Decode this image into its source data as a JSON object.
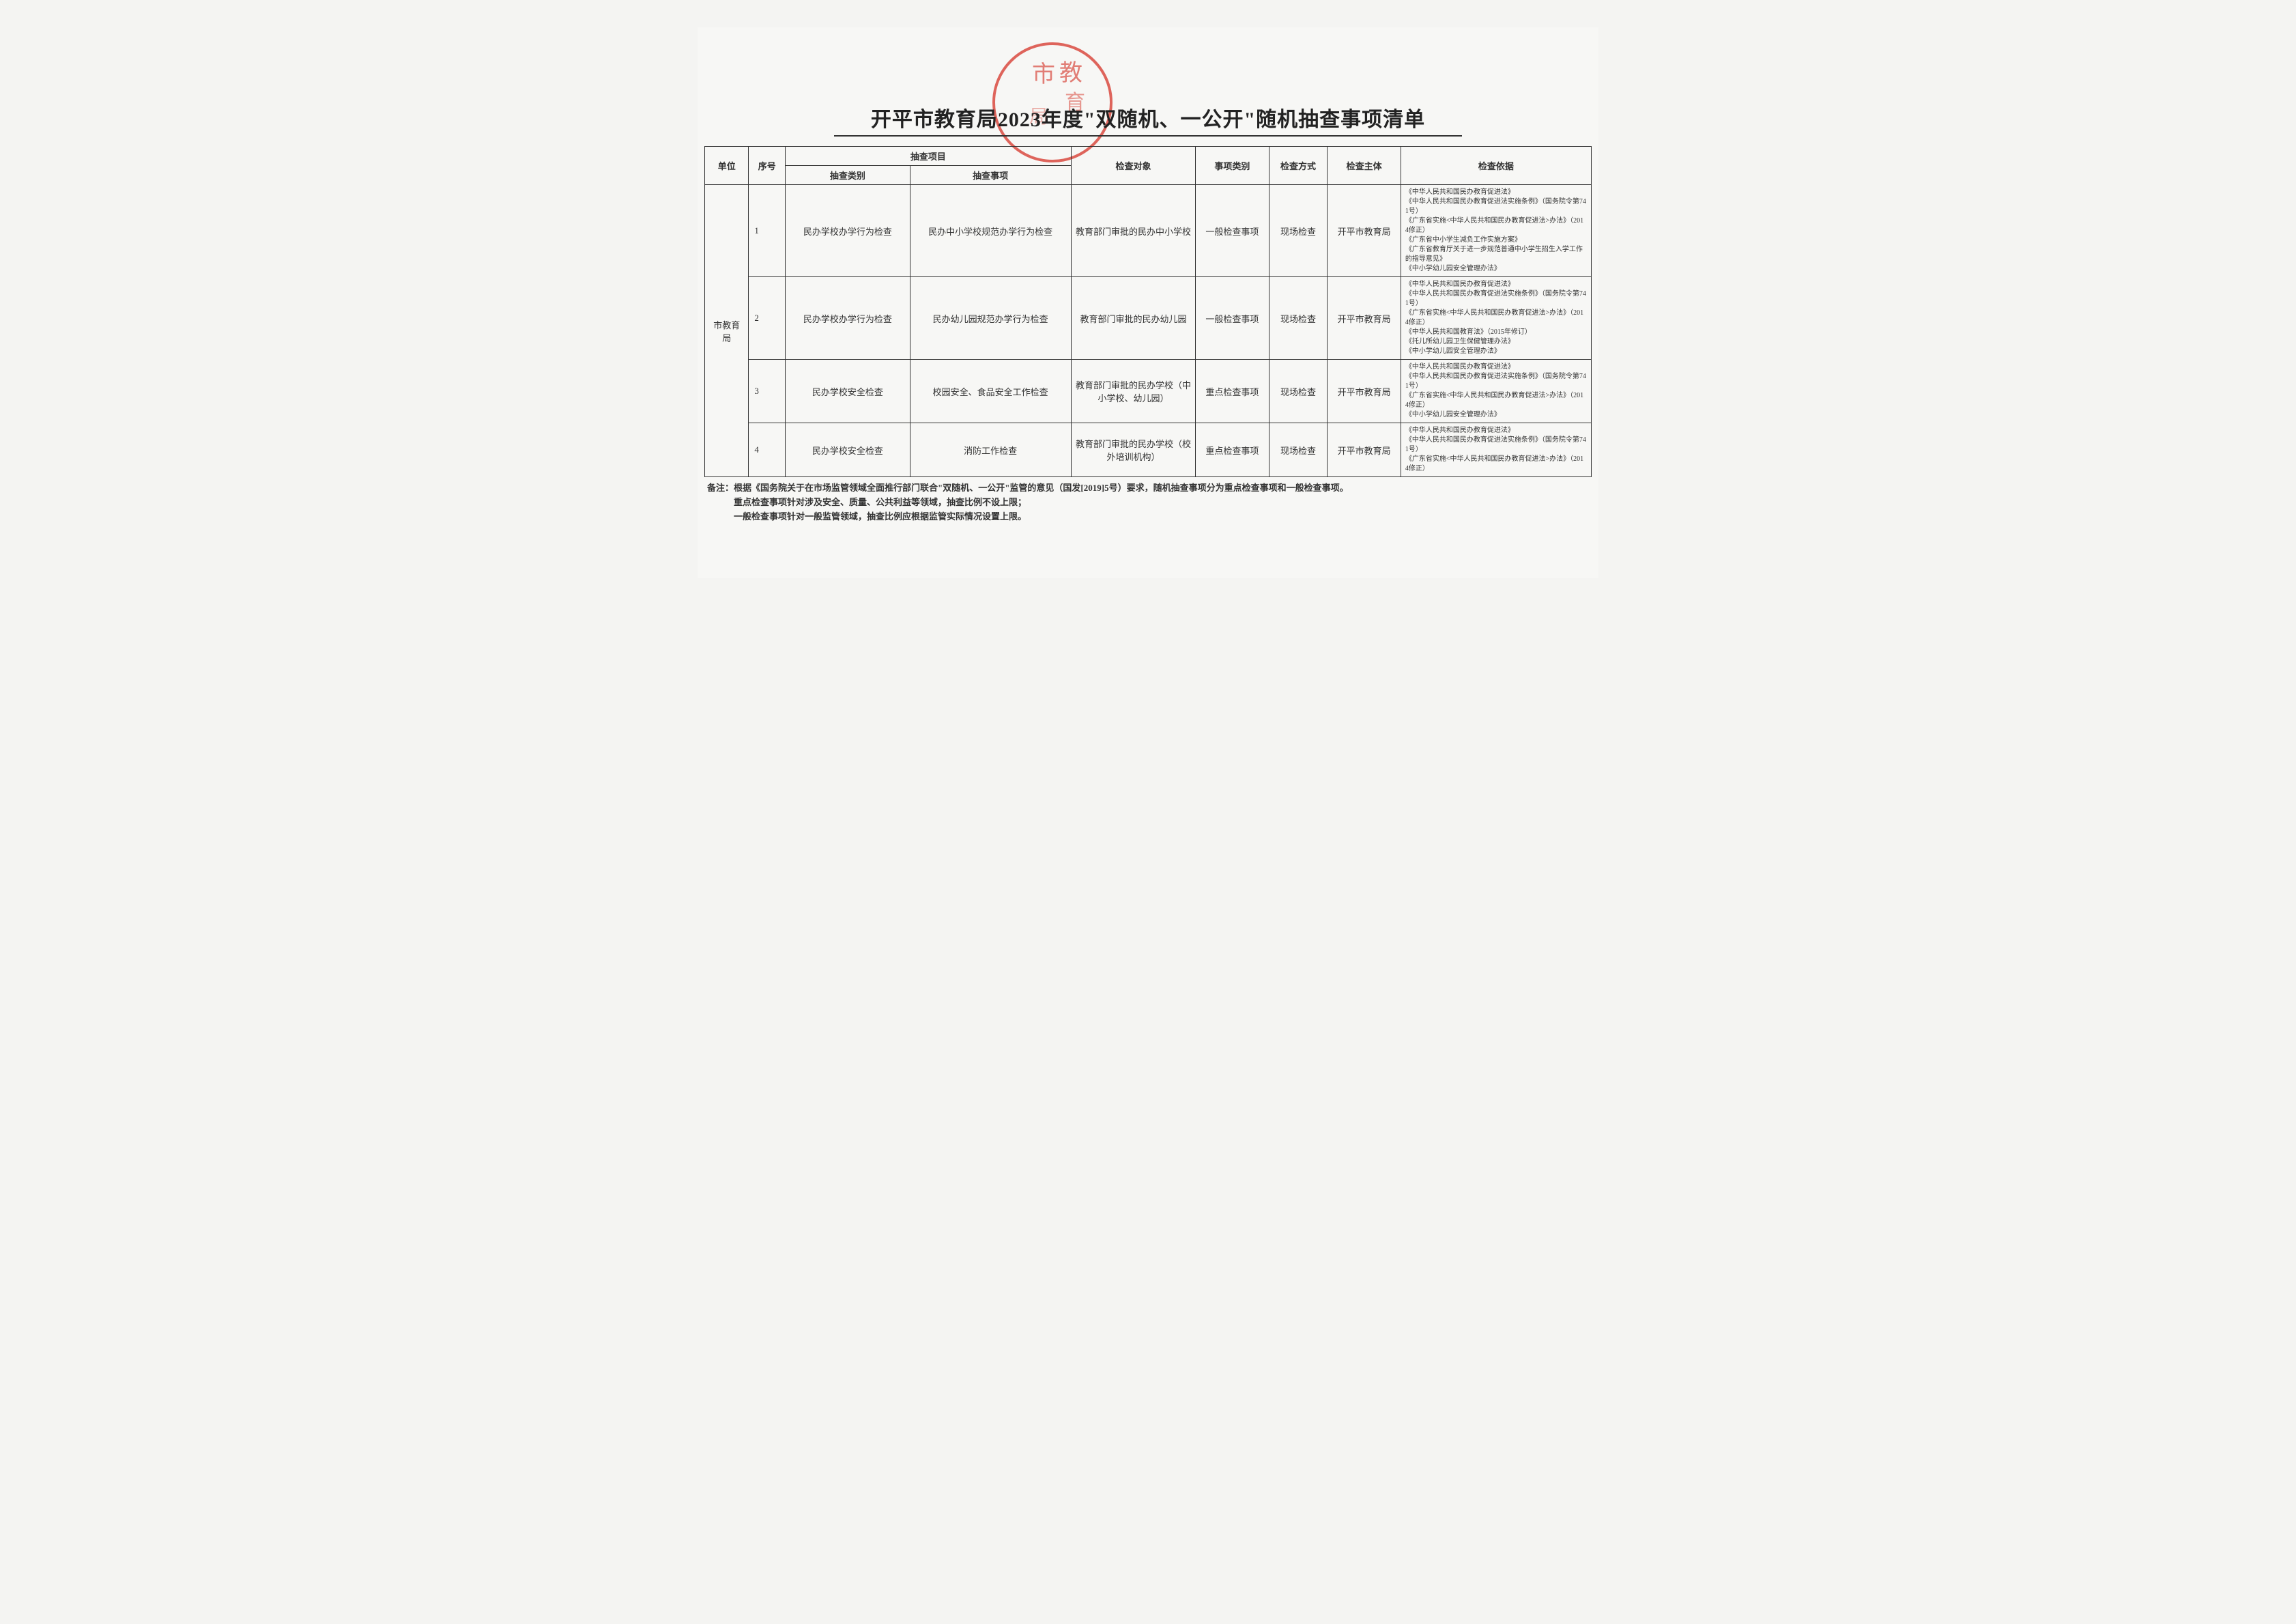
{
  "title": "开平市教育局2023年度\"双随机、一公开\"随机抽查事项清单",
  "stamp": {
    "circle_color": "#d94a3f",
    "text_color": "#d94a3f",
    "stroke_width": 4,
    "radius": 86,
    "text": "市 教"
  },
  "header": {
    "unit": "单位",
    "seq": "序号",
    "project_group": "抽查项目",
    "category": "抽查类别",
    "item": "抽查事项",
    "target": "检查对象",
    "type": "事项类别",
    "method": "检查方式",
    "body": "检查主体",
    "basis": "检查依据"
  },
  "unit_label": "市教育局",
  "rows": [
    {
      "seq": "1",
      "category": "民办学校办学行为检查",
      "item": "民办中小学校规范办学行为检查",
      "target": "教育部门审批的民办中小学校",
      "type": "一般检查事项",
      "method": "现场检查",
      "body": "开平市教育局",
      "basis": "《中华人民共和国民办教育促进法》\n《中华人民共和国民办教育促进法实施条例》（国务院令第741号）\n《广东省实施<中华人民共和国民办教育促进法>办法》（2014修正）\n《广东省中小学生减负工作实施方案》\n《广东省教育厅关于进一步规范普通中小学生招生入学工作的指导意见》\n《中小学幼儿园安全管理办法》"
    },
    {
      "seq": "2",
      "category": "民办学校办学行为检查",
      "item": "民办幼儿园规范办学行为检查",
      "target": "教育部门审批的民办幼儿园",
      "type": "一般检查事项",
      "method": "现场检查",
      "body": "开平市教育局",
      "basis": "《中华人民共和国民办教育促进法》\n《中华人民共和国民办教育促进法实施条例》（国务院令第741号）\n《广东省实施<中华人民共和国民办教育促进法>办法》（2014修正）\n《中华人民共和国教育法》（2015年修订）\n《托儿所幼儿园卫生保健管理办法》\n《中小学幼儿园安全管理办法》"
    },
    {
      "seq": "3",
      "category": "民办学校安全检查",
      "item": "校园安全、食品安全工作检查",
      "target": "教育部门审批的民办学校（中小学校、幼儿园）",
      "type": "重点检查事项",
      "method": "现场检查",
      "body": "开平市教育局",
      "basis": "《中华人民共和国民办教育促进法》\n《中华人民共和国民办教育促进法实施条例》（国务院令第741号）\n《广东省实施<中华人民共和国民办教育促进法>办法》（2014修正）\n《中小学幼儿园安全管理办法》"
    },
    {
      "seq": "4",
      "category": "民办学校安全检查",
      "item": "消防工作检查",
      "target": "教育部门审批的民办学校（校外培训机构）",
      "type": "重点检查事项",
      "method": "现场检查",
      "body": "开平市教育局",
      "basis": "《中华人民共和国民办教育促进法》\n《中华人民共和国民办教育促进法实施条例》（国务院令第741号）\n《广东省实施<中华人民共和国民办教育促进法>办法》（2014修正）"
    }
  ],
  "notes": {
    "line1": "备注：根据《国务院关于在市场监管领域全面推行部门联合\"双随机、一公开\"监管的意见（国发[2019]5号）要求，随机抽查事项分为重点检查事项和一般检查事项。",
    "line2": "重点检查事项针对涉及安全、质量、公共利益等领域，抽查比例不设上限；",
    "line3": "一般检查事项针对一般监管领域，抽查比例应根据监管实际情况设置上限。"
  }
}
